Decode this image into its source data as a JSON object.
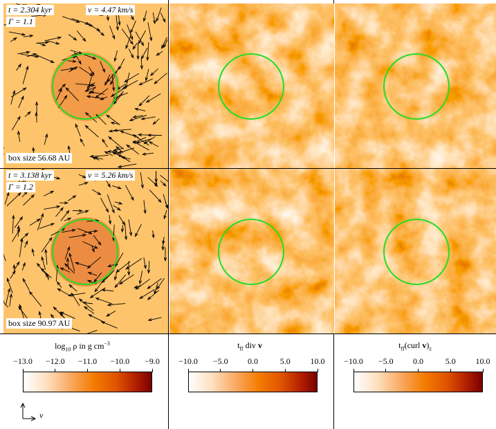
{
  "panels": [
    {
      "time": "t = 2.304 kyr",
      "speed": "v = 4.47 km/s",
      "gamma": "Γ = 1.1",
      "box": "box size 56.68 AU"
    },
    {
      "time": "t = 3.138 kyr",
      "speed": "v = 5.26 km/s",
      "gamma": "Γ = 1.2",
      "box": "box size 90.97 AU"
    }
  ],
  "colorbars": [
    {
      "label": [
        {
          "text": "log"
        },
        {
          "sub": "10"
        },
        {
          "text": " ρ in g cm"
        },
        {
          "sup": "−3"
        }
      ],
      "lim": [
        -13,
        -9
      ],
      "ticks": [
        {
          "value": -13,
          "label": "−13.0"
        },
        {
          "value": -12,
          "label": "−12.0"
        },
        {
          "value": -11,
          "label": "−11.0"
        },
        {
          "value": -10,
          "label": "−10.0"
        },
        {
          "value": -9,
          "label": "−9.0"
        }
      ]
    },
    {
      "label": [
        {
          "text": "t"
        },
        {
          "sub": "ff"
        },
        {
          "text": " div "
        },
        {
          "bold": "v"
        }
      ],
      "lim": [
        -10,
        10
      ],
      "ticks": [
        {
          "value": -10,
          "label": "−10.0"
        },
        {
          "value": -5,
          "label": "−5.0"
        },
        {
          "value": 0,
          "label": "0.0"
        },
        {
          "value": 5,
          "label": "5.0"
        },
        {
          "value": 10,
          "label": "10.0"
        }
      ]
    },
    {
      "label": [
        {
          "text": "t"
        },
        {
          "sub": "ff"
        },
        {
          "text": "(curl "
        },
        {
          "bold": "v"
        },
        {
          "text": ")"
        },
        {
          "sub": "z"
        }
      ],
      "lim": [
        -10,
        10
      ],
      "ticks": [
        {
          "value": -10,
          "label": "−10.0"
        },
        {
          "value": -5,
          "label": "−5.0"
        },
        {
          "value": 0,
          "label": "0.0"
        },
        {
          "value": 5,
          "label": "5.0"
        },
        {
          "value": 10,
          "label": "10.0"
        }
      ]
    }
  ],
  "legend": {
    "arrow": "v"
  }
}
